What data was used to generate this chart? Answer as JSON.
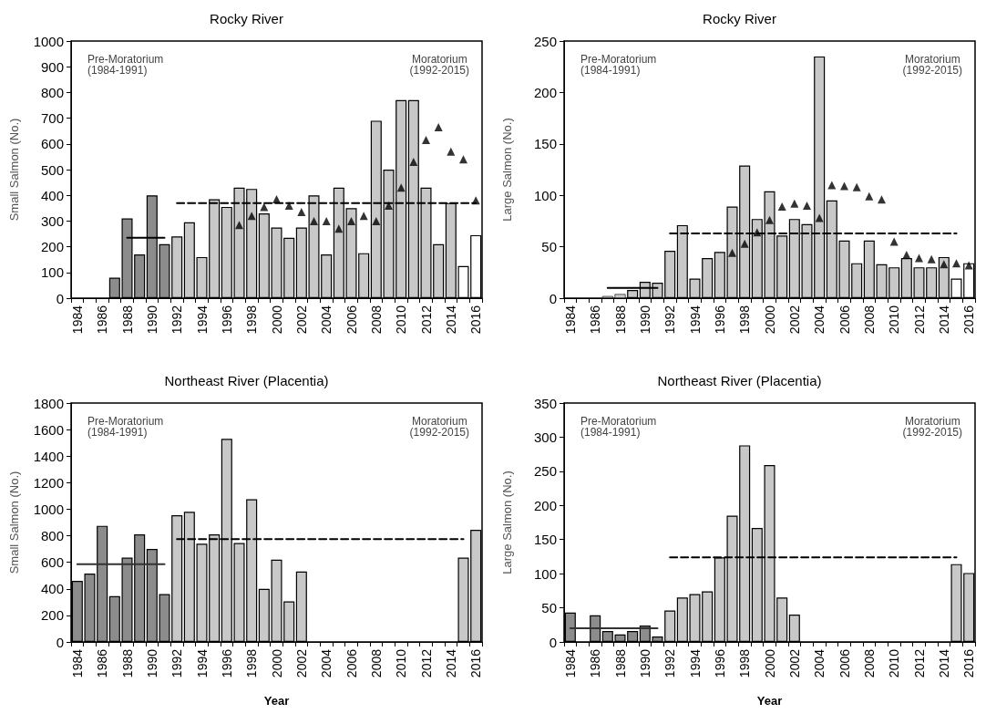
{
  "chart_data": [
    {
      "type": "bar",
      "title": "Rocky River",
      "ylabel": "Small Salmon (No.)",
      "annotations": [
        "Pre-Moratorium\n(1984-1991)",
        "Moratorium\n(1992-2015)"
      ],
      "categories": [
        "1984",
        null,
        "1986",
        null,
        "1988",
        null,
        "1990",
        null,
        "1992",
        null,
        "1994",
        null,
        "1996",
        null,
        "1998",
        null,
        "2000",
        null,
        "2002",
        null,
        "2004",
        null,
        "2006",
        null,
        "2008",
        null,
        "2010",
        null,
        "2012",
        null,
        "2014",
        null,
        "2016"
      ],
      "ylim": [
        0,
        1000
      ],
      "yticks": [
        0,
        100,
        200,
        300,
        400,
        500,
        600,
        700,
        800,
        900,
        1000
      ],
      "series": [
        {
          "values": [
            null,
            null,
            null,
            80,
            310,
            170,
            400,
            210,
            240,
            295,
            160,
            385,
            355,
            430,
            425,
            330,
            275,
            235,
            275,
            400,
            170,
            430,
            350,
            175,
            690,
            500,
            770,
            770,
            430,
            210,
            370,
            125,
            245
          ],
          "colors": [
            "#8c8c8c",
            "#8c8c8c",
            "#8c8c8c",
            "#8c8c8c",
            "#8c8c8c",
            "#8c8c8c",
            "#8c8c8c",
            "#8c8c8c",
            "#c8c8c8",
            "#c8c8c8",
            "#c8c8c8",
            "#c8c8c8",
            "#c8c8c8",
            "#c8c8c8",
            "#c8c8c8",
            "#c8c8c8",
            "#c8c8c8",
            "#c8c8c8",
            "#c8c8c8",
            "#c8c8c8",
            "#c8c8c8",
            "#c8c8c8",
            "#c8c8c8",
            "#c8c8c8",
            "#c8c8c8",
            "#c8c8c8",
            "#c8c8c8",
            "#c8c8c8",
            "#c8c8c8",
            "#c8c8c8",
            "#c8c8c8",
            "#ffffff",
            "#ffffff"
          ]
        },
        {
          "type": "line",
          "color": "#000000",
          "line_style": "solid",
          "marker": "none",
          "values": [
            null,
            null,
            null,
            null,
            235,
            235,
            235,
            235,
            null,
            null,
            null,
            null,
            null,
            null,
            null,
            null,
            null,
            null,
            null,
            null,
            null,
            null,
            null,
            null,
            null,
            null,
            null,
            null,
            null,
            null,
            null,
            null,
            null
          ]
        },
        {
          "type": "line",
          "color": "#000000",
          "line_style": "dashed",
          "marker": "none",
          "values": [
            null,
            null,
            null,
            null,
            null,
            null,
            null,
            null,
            370,
            370,
            370,
            370,
            370,
            370,
            370,
            370,
            370,
            370,
            370,
            370,
            370,
            370,
            370,
            370,
            370,
            370,
            370,
            370,
            370,
            370,
            370,
            370,
            370
          ]
        },
        {
          "type": "scatter",
          "color": "#000000",
          "marker": "triangle",
          "values": [
            null,
            null,
            null,
            null,
            null,
            null,
            null,
            null,
            null,
            null,
            null,
            null,
            null,
            285,
            320,
            355,
            385,
            360,
            335,
            300,
            300,
            270,
            300,
            320,
            300,
            360,
            430,
            530,
            615,
            665,
            570,
            540,
            380
          ]
        }
      ]
    },
    {
      "type": "bar",
      "title": "Rocky River",
      "ylabel": "Large Salmon (No.)",
      "annotations": [
        "Pre-Moratorium\n(1984-1991)",
        "Moratorium\n(1992-2015)"
      ],
      "categories": [
        "1984",
        null,
        "1986",
        null,
        "1988",
        null,
        "1990",
        null,
        "1992",
        null,
        "1994",
        null,
        "1996",
        null,
        "1998",
        null,
        "2000",
        null,
        "2002",
        null,
        "2004",
        null,
        "2006",
        null,
        "2008",
        null,
        "2010",
        null,
        "2012",
        null,
        "2014",
        null,
        "2016"
      ],
      "ylim": [
        0,
        250
      ],
      "yticks": [
        0,
        50,
        100,
        150,
        200,
        250
      ],
      "series": [
        {
          "values": [
            null,
            null,
            null,
            2,
            4,
            8,
            16,
            15,
            46,
            71,
            19,
            39,
            45,
            89,
            129,
            77,
            104,
            61,
            77,
            72,
            235,
            95,
            56,
            34,
            56,
            33,
            30,
            39,
            30,
            30,
            40,
            19,
            34
          ],
          "colors": [
            "#c8c8c8",
            "#c8c8c8",
            "#c8c8c8",
            "#c8c8c8",
            "#c8c8c8",
            "#c8c8c8",
            "#c8c8c8",
            "#c8c8c8",
            "#c8c8c8",
            "#c8c8c8",
            "#c8c8c8",
            "#c8c8c8",
            "#c8c8c8",
            "#c8c8c8",
            "#c8c8c8",
            "#c8c8c8",
            "#c8c8c8",
            "#c8c8c8",
            "#c8c8c8",
            "#c8c8c8",
            "#c8c8c8",
            "#c8c8c8",
            "#c8c8c8",
            "#c8c8c8",
            "#c8c8c8",
            "#c8c8c8",
            "#c8c8c8",
            "#c8c8c8",
            "#c8c8c8",
            "#c8c8c8",
            "#c8c8c8",
            "#ffffff",
            "#ffffff"
          ]
        },
        {
          "type": "line",
          "color": "#000000",
          "line_style": "solid",
          "marker": "none",
          "values": [
            null,
            null,
            null,
            10,
            10,
            10,
            10,
            10,
            null,
            null,
            null,
            null,
            null,
            null,
            null,
            null,
            null,
            null,
            null,
            null,
            null,
            null,
            null,
            null,
            null,
            null,
            null,
            null,
            null,
            null,
            null,
            null,
            null
          ]
        },
        {
          "type": "line",
          "color": "#000000",
          "line_style": "dashed",
          "marker": "none",
          "values": [
            null,
            null,
            null,
            null,
            null,
            null,
            null,
            null,
            63,
            63,
            63,
            63,
            63,
            63,
            63,
            63,
            63,
            63,
            63,
            63,
            63,
            63,
            63,
            63,
            63,
            63,
            63,
            63,
            63,
            63,
            63,
            63,
            null
          ]
        },
        {
          "type": "scatter",
          "color": "#000000",
          "marker": "triangle",
          "values": [
            null,
            null,
            null,
            null,
            null,
            null,
            null,
            null,
            null,
            null,
            null,
            null,
            null,
            44,
            53,
            64,
            76,
            89,
            92,
            90,
            78,
            110,
            109,
            108,
            99,
            96,
            55,
            42,
            39,
            38,
            33,
            34,
            32
          ]
        }
      ]
    },
    {
      "type": "bar",
      "title": "Northeast River (Placentia)",
      "ylabel": "Small Salmon (No.)",
      "xlabel": "Year",
      "annotations": [
        "Pre-Moratorium\n(1984-1991)",
        "Moratorium\n(1992-2015)"
      ],
      "categories": [
        "1984",
        null,
        "1986",
        null,
        "1988",
        null,
        "1990",
        null,
        "1992",
        null,
        "1994",
        null,
        "1996",
        null,
        "1998",
        null,
        "2000",
        null,
        "2002",
        null,
        "2004",
        null,
        "2006",
        null,
        "2008",
        null,
        "2010",
        null,
        "2012",
        null,
        "2014",
        null,
        "2016"
      ],
      "ylim": [
        0,
        1800
      ],
      "yticks": [
        0,
        200,
        400,
        600,
        800,
        1000,
        1200,
        1400,
        1600,
        1800
      ],
      "series": [
        {
          "values": [
            460,
            515,
            875,
            345,
            635,
            810,
            700,
            360,
            955,
            980,
            740,
            810,
            1530,
            745,
            1075,
            400,
            620,
            305,
            530,
            null,
            null,
            null,
            null,
            null,
            null,
            null,
            null,
            null,
            null,
            null,
            null,
            635,
            845
          ],
          "colors": [
            "#8c8c8c",
            "#8c8c8c",
            "#8c8c8c",
            "#8c8c8c",
            "#8c8c8c",
            "#8c8c8c",
            "#8c8c8c",
            "#8c8c8c",
            "#c8c8c8",
            "#c8c8c8",
            "#c8c8c8",
            "#c8c8c8",
            "#c8c8c8",
            "#c8c8c8",
            "#c8c8c8",
            "#c8c8c8",
            "#c8c8c8",
            "#c8c8c8",
            "#c8c8c8",
            "#c8c8c8",
            "#c8c8c8",
            "#c8c8c8",
            "#c8c8c8",
            "#c8c8c8",
            "#c8c8c8",
            "#c8c8c8",
            "#c8c8c8",
            "#c8c8c8",
            "#c8c8c8",
            "#c8c8c8",
            "#c8c8c8",
            "#c8c8c8",
            "#c8c8c8"
          ]
        },
        {
          "type": "line",
          "color": "#333333",
          "line_style": "solid",
          "marker": "none",
          "values": [
            585,
            585,
            585,
            585,
            585,
            585,
            585,
            585,
            null,
            null,
            null,
            null,
            null,
            null,
            null,
            null,
            null,
            null,
            null,
            null,
            null,
            null,
            null,
            null,
            null,
            null,
            null,
            null,
            null,
            null,
            null,
            null,
            null
          ]
        },
        {
          "type": "line",
          "color": "#000000",
          "line_style": "dashed",
          "marker": "none",
          "values": [
            null,
            null,
            null,
            null,
            null,
            null,
            null,
            null,
            775,
            775,
            775,
            775,
            775,
            775,
            775,
            775,
            775,
            775,
            775,
            775,
            775,
            775,
            775,
            775,
            775,
            775,
            775,
            775,
            775,
            775,
            775,
            775,
            null
          ]
        }
      ]
    },
    {
      "type": "bar",
      "title": "Northeast River (Placentia)",
      "ylabel": "Large Salmon (No.)",
      "xlabel": "Year",
      "annotations": [
        "Pre-Moratorium\n(1984-1991)",
        "Moratorium\n(1992-2015)"
      ],
      "categories": [
        "1984",
        null,
        "1986",
        null,
        "1988",
        null,
        "1990",
        null,
        "1992",
        null,
        "1994",
        null,
        "1996",
        null,
        "1998",
        null,
        "2000",
        null,
        "2002",
        null,
        "2004",
        null,
        "2006",
        null,
        "2008",
        null,
        "2010",
        null,
        "2012",
        null,
        "2014",
        null,
        "2016"
      ],
      "ylim": [
        0,
        350
      ],
      "yticks": [
        0,
        50,
        100,
        150,
        200,
        250,
        300,
        350
      ],
      "series": [
        {
          "values": [
            43,
            null,
            39,
            16,
            11,
            16,
            24,
            8,
            46,
            65,
            70,
            74,
            124,
            185,
            288,
            167,
            259,
            65,
            40,
            null,
            null,
            null,
            null,
            null,
            null,
            null,
            null,
            null,
            null,
            null,
            null,
            114,
            101
          ],
          "colors": [
            "#8c8c8c",
            "#8c8c8c",
            "#8c8c8c",
            "#8c8c8c",
            "#8c8c8c",
            "#8c8c8c",
            "#8c8c8c",
            "#8c8c8c",
            "#c8c8c8",
            "#c8c8c8",
            "#c8c8c8",
            "#c8c8c8",
            "#c8c8c8",
            "#c8c8c8",
            "#c8c8c8",
            "#c8c8c8",
            "#c8c8c8",
            "#c8c8c8",
            "#c8c8c8",
            "#c8c8c8",
            "#c8c8c8",
            "#c8c8c8",
            "#c8c8c8",
            "#c8c8c8",
            "#c8c8c8",
            "#c8c8c8",
            "#c8c8c8",
            "#c8c8c8",
            "#c8c8c8",
            "#c8c8c8",
            "#c8c8c8",
            "#c8c8c8",
            "#c8c8c8"
          ]
        },
        {
          "type": "line",
          "color": "#333333",
          "line_style": "solid",
          "marker": "none",
          "values": [
            20,
            20,
            20,
            20,
            20,
            20,
            20,
            20,
            null,
            null,
            null,
            null,
            null,
            null,
            null,
            null,
            null,
            null,
            null,
            null,
            null,
            null,
            null,
            null,
            null,
            null,
            null,
            null,
            null,
            null,
            null,
            null,
            null
          ]
        },
        {
          "type": "line",
          "color": "#000000",
          "line_style": "dashed",
          "marker": "none",
          "values": [
            null,
            null,
            null,
            null,
            null,
            null,
            null,
            null,
            124,
            124,
            124,
            124,
            124,
            124,
            124,
            124,
            124,
            124,
            124,
            124,
            124,
            124,
            124,
            124,
            124,
            124,
            124,
            124,
            124,
            124,
            124,
            124,
            null
          ]
        }
      ]
    }
  ]
}
